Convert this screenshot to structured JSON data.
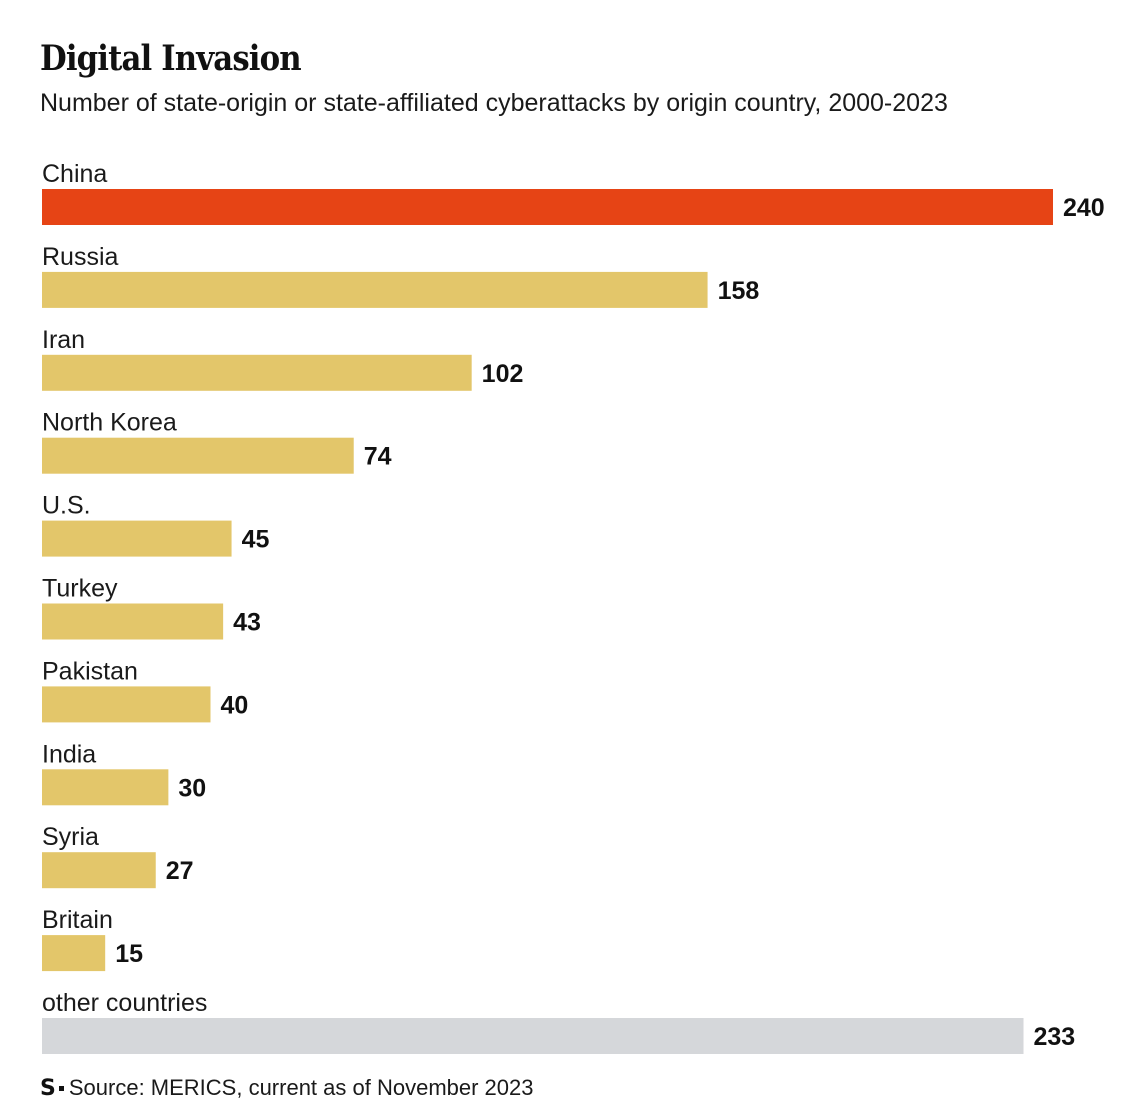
{
  "header": {
    "title": "Digital Invasion",
    "subtitle": "Number of state-origin or state-affiliated cyberattacks by origin country, 2000-2023"
  },
  "colors": {
    "highlight": "#E64415",
    "default": "#E3C66A",
    "other": "#D5D7DA"
  },
  "chart_data": {
    "type": "bar",
    "orientation": "horizontal",
    "title": "Digital Invasion",
    "subtitle": "Number of state-origin or state-affiliated cyberattacks by origin country, 2000-2023",
    "categories": [
      "China",
      "Russia",
      "Iran",
      "North Korea",
      "U.S.",
      "Turkey",
      "Pakistan",
      "India",
      "Syria",
      "Britain",
      "other countries"
    ],
    "values": [
      240,
      158,
      102,
      74,
      45,
      43,
      40,
      30,
      27,
      15,
      233
    ],
    "value_labels": [
      "240",
      "158",
      "102",
      "74",
      "45",
      "43",
      "40",
      "30",
      "27",
      "15",
      "233"
    ],
    "bar_colors": [
      "highlight",
      "default",
      "default",
      "default",
      "default",
      "default",
      "default",
      "default",
      "default",
      "default",
      "other"
    ],
    "xlim": [
      0,
      240
    ],
    "grid": false,
    "legend": "none"
  },
  "footer": {
    "logo": "S",
    "source": "Source: MERICS, current as of November 2023"
  }
}
